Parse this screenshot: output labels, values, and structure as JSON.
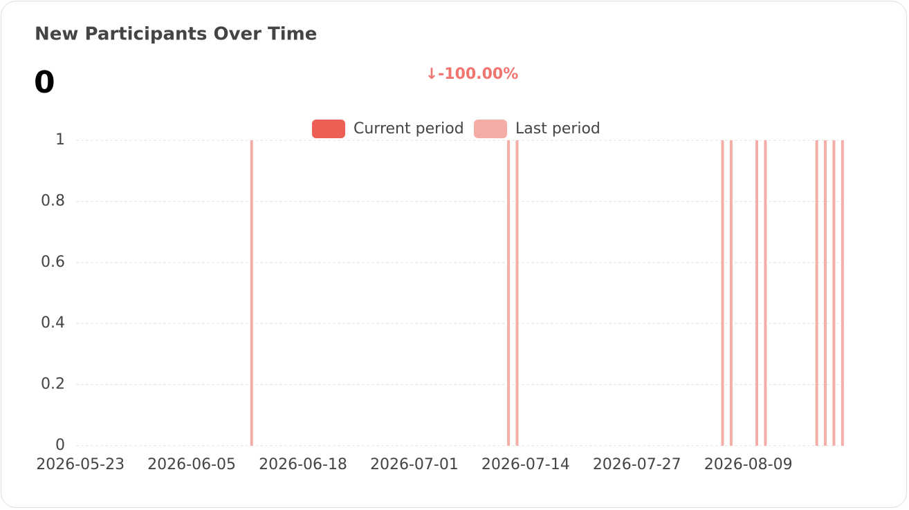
{
  "chart_data": {
    "type": "bar",
    "title": "New Participants Over Time",
    "total": "0",
    "change": "↓-100.00%",
    "categories": [
      "2026-05-23",
      null,
      null,
      null,
      null,
      null,
      null,
      null,
      null,
      null,
      null,
      null,
      null,
      "2026-06-05",
      null,
      null,
      null,
      null,
      null,
      null,
      null,
      null,
      null,
      null,
      null,
      null,
      "2026-06-18",
      null,
      null,
      null,
      null,
      null,
      null,
      null,
      null,
      null,
      null,
      null,
      null,
      "2026-07-01",
      null,
      null,
      null,
      null,
      null,
      null,
      null,
      null,
      null,
      null,
      null,
      null,
      "2026-07-14",
      null,
      null,
      null,
      null,
      null,
      null,
      null,
      null,
      null,
      null,
      null,
      null,
      "2026-07-27",
      null,
      null,
      null,
      null,
      null,
      null,
      null,
      null,
      null,
      null,
      null,
      null,
      "2026-08-09",
      null,
      null,
      null,
      null,
      null,
      null,
      null,
      null,
      null,
      null,
      null
    ],
    "series": [
      {
        "name": "Current period",
        "color": "#ed5e55",
        "values": [
          0,
          0,
          0,
          0,
          0,
          0,
          0,
          0,
          0,
          0,
          0,
          0,
          0,
          0,
          0,
          0,
          0,
          0,
          0,
          0,
          0,
          0,
          0,
          0,
          0,
          0,
          0,
          0,
          0,
          0,
          0,
          0,
          0,
          0,
          0,
          0,
          0,
          0,
          0,
          0,
          0,
          0,
          0,
          0,
          0,
          0,
          0,
          0,
          0,
          0,
          0,
          0,
          0,
          0,
          0,
          0,
          0,
          0,
          0,
          0,
          0,
          0,
          0,
          0,
          0,
          0,
          0,
          0,
          0,
          0,
          0,
          0,
          0,
          0,
          0,
          0,
          0,
          0,
          0,
          0,
          0,
          0,
          0,
          0,
          0,
          0,
          0,
          0,
          0,
          0
        ]
      },
      {
        "name": "Last period",
        "color": "#f4ada7",
        "values": [
          0,
          0,
          0,
          0,
          0,
          0,
          0,
          0,
          0,
          0,
          0,
          0,
          0,
          0,
          0,
          0,
          0,
          0,
          0,
          0,
          1,
          0,
          0,
          0,
          0,
          0,
          0,
          0,
          0,
          0,
          0,
          0,
          0,
          0,
          0,
          0,
          0,
          0,
          0,
          0,
          0,
          0,
          0,
          0,
          0,
          0,
          0,
          0,
          0,
          0,
          1,
          1,
          0,
          0,
          0,
          0,
          0,
          0,
          0,
          0,
          0,
          0,
          0,
          0,
          0,
          0,
          0,
          0,
          0,
          0,
          0,
          0,
          0,
          0,
          0,
          1,
          1,
          0,
          0,
          1,
          1,
          0,
          0,
          0,
          0,
          0,
          1,
          1,
          1,
          1
        ]
      }
    ],
    "ylim": [
      0,
      1
    ],
    "yticks": [
      0,
      0.2,
      0.4,
      0.6,
      0.8,
      1
    ],
    "grid": true
  }
}
